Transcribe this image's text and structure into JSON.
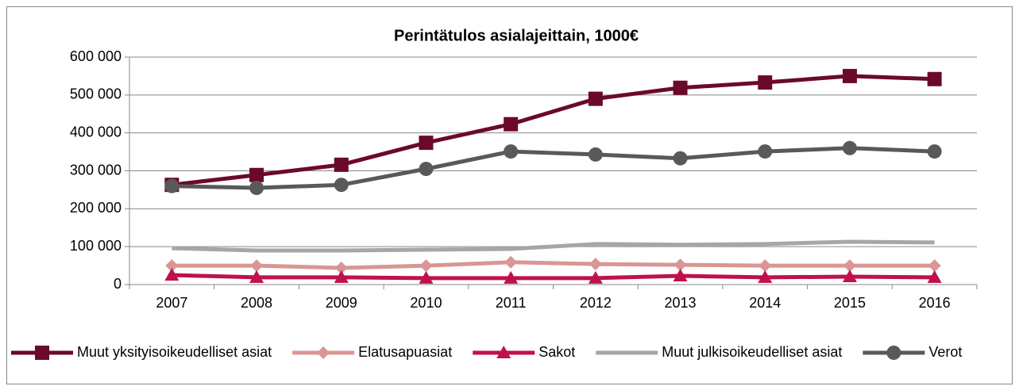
{
  "chart_data": {
    "type": "line",
    "title": "Perintätulos asialajeittain, 1000€",
    "categories": [
      "2007",
      "2008",
      "2009",
      "2010",
      "2011",
      "2012",
      "2013",
      "2014",
      "2015",
      "2016"
    ],
    "series": [
      {
        "name": "Muut yksityisoikeudelliset asiat",
        "color": "#6b0a28",
        "marker": "square",
        "values": [
          263000,
          289000,
          316000,
          374000,
          423000,
          490000,
          519000,
          533000,
          550000,
          542000
        ]
      },
      {
        "name": "Elatusapuasiat",
        "color": "#d99694",
        "marker": "diamond",
        "values": [
          50000,
          50000,
          44000,
          50000,
          59000,
          54000,
          52000,
          50000,
          50000,
          50000
        ]
      },
      {
        "name": "Sakot",
        "color": "#c0104f",
        "marker": "triangle",
        "values": [
          25000,
          19000,
          19000,
          17000,
          17000,
          17000,
          23000,
          19000,
          21000,
          19000
        ]
      },
      {
        "name": "Muut julkisoikeudelliset asiat",
        "color": "#a6a6a6",
        "marker": "none",
        "values": [
          96000,
          90000,
          90000,
          92000,
          94000,
          107000,
          105000,
          107000,
          113000,
          111000
        ]
      },
      {
        "name": "Verot",
        "color": "#595959",
        "marker": "circle",
        "values": [
          260000,
          255000,
          263000,
          305000,
          351000,
          343000,
          333000,
          351000,
          360000,
          351000
        ]
      }
    ],
    "ylim": [
      0,
      600000
    ],
    "yticks": [
      0,
      {
        "value": 100000,
        "label": "100 000"
      },
      {
        "value": 200000,
        "label": "200 000"
      },
      {
        "value": 300000,
        "label": "300 000"
      },
      {
        "value": 400000,
        "label": "400 000"
      },
      {
        "value": 500000,
        "label": "500 000"
      },
      {
        "value": 600000,
        "label": "600 000"
      }
    ],
    "grid": true,
    "legend": "bottom"
  }
}
